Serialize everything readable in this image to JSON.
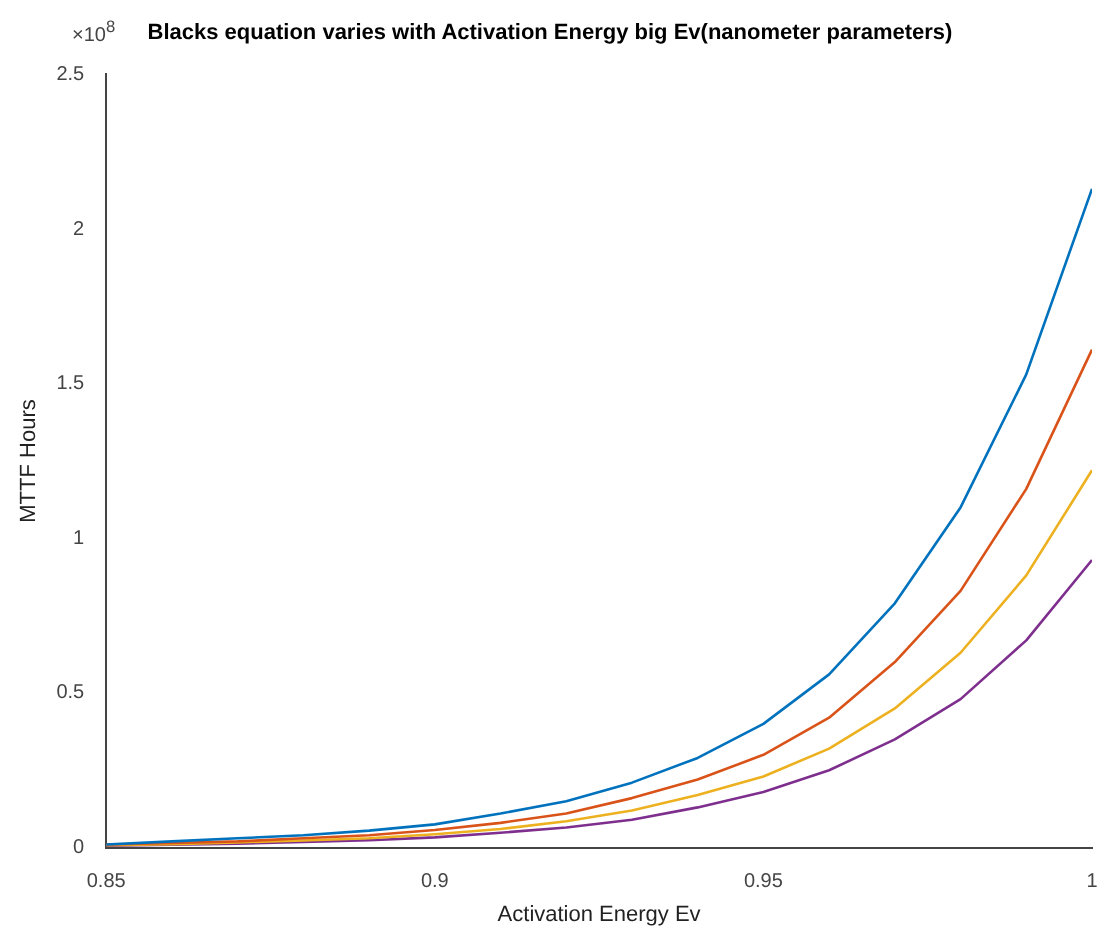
{
  "chart_data": {
    "type": "line",
    "title": "Blacks equation varies with Activation Energy big Ev(nanometer parameters)",
    "xlabel": "Activation Energy Ev",
    "ylabel": "MTTF Hours",
    "annotations": [
      "×10$^{8}$"
    ],
    "x": [
      0.85,
      0.86,
      0.87,
      0.88,
      0.89,
      0.9,
      0.91,
      0.92,
      0.93,
      0.94,
      0.95,
      0.96,
      0.97,
      0.98,
      0.99,
      1.0
    ],
    "series": [
      {
        "color": "#0072bd",
        "values": [
          0.01,
          0.02,
          0.03,
          0.04,
          0.055,
          0.075,
          0.11,
          0.15,
          0.21,
          0.29,
          0.4,
          0.56,
          0.79,
          1.1,
          1.53,
          2.13
        ]
      },
      {
        "color": "#d95319",
        "values": [
          0.01,
          0.015,
          0.02,
          0.03,
          0.04,
          0.057,
          0.08,
          0.11,
          0.16,
          0.22,
          0.3,
          0.42,
          0.6,
          0.83,
          1.16,
          1.61
        ]
      },
      {
        "color": "#edb120",
        "values": [
          0.008,
          0.011,
          0.017,
          0.023,
          0.03,
          0.043,
          0.06,
          0.085,
          0.12,
          0.17,
          0.23,
          0.32,
          0.45,
          0.63,
          0.88,
          1.22
        ]
      },
      {
        "color": "#7e2f8e",
        "values": [
          0.006,
          0.009,
          0.013,
          0.018,
          0.024,
          0.033,
          0.048,
          0.065,
          0.09,
          0.13,
          0.18,
          0.25,
          0.35,
          0.48,
          0.67,
          0.93
        ]
      }
    ],
    "xlim": [
      0.85,
      1
    ],
    "xticks": [
      0.85,
      0.9,
      0.95,
      1
    ],
    "ylim": [
      0,
      2.5
    ],
    "yticks": [
      0,
      0.5,
      1,
      1.5,
      2,
      2.5
    ],
    "grid": false,
    "legend": false,
    "marker": "none",
    "line_style": "solid"
  }
}
